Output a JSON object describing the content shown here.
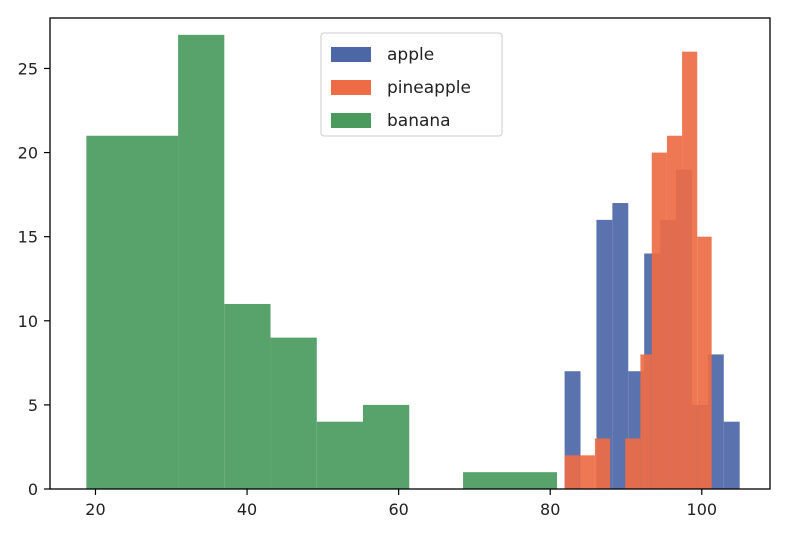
{
  "chart_data": {
    "type": "histogram",
    "title": "",
    "xlabel": "",
    "ylabel": "",
    "xlim": [
      14,
      109
    ],
    "ylim": [
      0,
      28
    ],
    "xticks": [
      20,
      40,
      60,
      80,
      100
    ],
    "yticks": [
      0,
      5,
      10,
      15,
      20,
      25
    ],
    "grid": false,
    "legend_position": "top-center",
    "series": [
      {
        "name": "apple",
        "color": "#4c66a6",
        "bins": [
          {
            "x0": 81.9,
            "x1": 84.0,
            "count": 7
          },
          {
            "x0": 84.0,
            "x1": 86.1,
            "count": 0
          },
          {
            "x0": 86.1,
            "x1": 88.2,
            "count": 16
          },
          {
            "x0": 88.2,
            "x1": 90.3,
            "count": 17
          },
          {
            "x0": 90.3,
            "x1": 92.4,
            "count": 7
          },
          {
            "x0": 92.4,
            "x1": 94.5,
            "count": 14
          },
          {
            "x0": 94.5,
            "x1": 96.6,
            "count": 16
          },
          {
            "x0": 96.6,
            "x1": 98.7,
            "count": 19
          },
          {
            "x0": 98.7,
            "x1": 100.8,
            "count": 5
          },
          {
            "x0": 100.8,
            "x1": 102.9,
            "count": 8
          },
          {
            "x0": 102.9,
            "x1": 105.0,
            "count": 4
          }
        ]
      },
      {
        "name": "pineapple",
        "color": "#ee6c45",
        "bins": [
          {
            "x0": 81.9,
            "x1": 83.9,
            "count": 2
          },
          {
            "x0": 83.9,
            "x1": 85.9,
            "count": 2
          },
          {
            "x0": 85.9,
            "x1": 87.9,
            "count": 3
          },
          {
            "x0": 87.9,
            "x1": 89.9,
            "count": 0
          },
          {
            "x0": 89.9,
            "x1": 91.9,
            "count": 3
          },
          {
            "x0": 91.9,
            "x1": 93.4,
            "count": 8
          },
          {
            "x0": 93.4,
            "x1": 95.4,
            "count": 20
          },
          {
            "x0": 95.4,
            "x1": 97.4,
            "count": 21
          },
          {
            "x0": 97.4,
            "x1": 99.4,
            "count": 26
          },
          {
            "x0": 99.4,
            "x1": 101.3,
            "count": 15
          }
        ]
      },
      {
        "name": "banana",
        "color": "#4a9a5e",
        "bins": [
          {
            "x0": 18.8,
            "x1": 30.9,
            "count": 21
          },
          {
            "x0": 30.9,
            "x1": 37.0,
            "count": 27
          },
          {
            "x0": 37.0,
            "x1": 43.1,
            "count": 11
          },
          {
            "x0": 43.1,
            "x1": 49.2,
            "count": 9
          },
          {
            "x0": 49.2,
            "x1": 55.3,
            "count": 4
          },
          {
            "x0": 55.3,
            "x1": 61.4,
            "count": 5
          },
          {
            "x0": 61.4,
            "x1": 68.5,
            "count": 0
          },
          {
            "x0": 68.5,
            "x1": 80.9,
            "count": 1
          }
        ]
      }
    ]
  }
}
